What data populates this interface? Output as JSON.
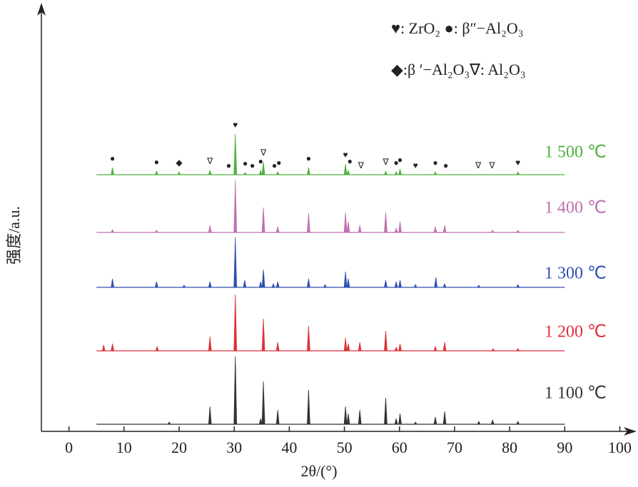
{
  "chart_data": {
    "type": "xrd",
    "xlabel": "2θ/(°)",
    "ylabel": "强度/a.u.",
    "xlim": [
      -5,
      102
    ],
    "xticks": [
      0,
      10,
      20,
      30,
      40,
      50,
      60,
      70,
      80,
      90,
      100
    ],
    "x_range": [
      5,
      90
    ],
    "legend": [
      "♥: ZrO₂ ●: β″−Al₂O₃",
      "◆:β ′−Al₂O₃∇:  Al₂O₃"
    ],
    "series": [
      {
        "name": "1 100 ℃",
        "color": "#333333",
        "x": [
          18.2,
          25.6,
          30.2,
          34.8,
          35.3,
          37.9,
          43.5,
          50.2,
          50.7,
          52.8,
          57.5,
          59.4,
          60.1,
          62.9,
          66.5,
          68.2,
          74.4,
          76.9,
          81.5
        ],
        "values": [
          3,
          25,
          95,
          8,
          60,
          20,
          48,
          25,
          15,
          20,
          37,
          8,
          15,
          3,
          10,
          18,
          4,
          6,
          4
        ]
      },
      {
        "name": "1 200 ℃",
        "color": "#e0303a",
        "x": [
          6.3,
          7.9,
          16,
          25.6,
          30.2,
          35.3,
          37.9,
          43.5,
          50.2,
          50.7,
          52.8,
          57.5,
          59.4,
          60.1,
          66.5,
          68.2,
          77,
          81.5
        ],
        "values": [
          8,
          10,
          6,
          20,
          79,
          45,
          12,
          35,
          18,
          10,
          12,
          28,
          5,
          10,
          6,
          12,
          3,
          3
        ]
      },
      {
        "name": "1 300 ℃",
        "color": "#3050b0",
        "x": [
          7.9,
          15.9,
          20.9,
          25.6,
          30.2,
          31.9,
          34.8,
          35.3,
          37.1,
          37.9,
          43.5,
          46.5,
          50.2,
          50.7,
          57.5,
          59.4,
          60.1,
          62.9,
          66.6,
          68.2,
          74.4,
          81.5
        ],
        "values": [
          12,
          8,
          3,
          8,
          70,
          10,
          8,
          25,
          5,
          8,
          12,
          4,
          22,
          12,
          10,
          8,
          10,
          4,
          14,
          5,
          3,
          4
        ]
      },
      {
        "name": "1 400 ℃",
        "color": "#c070b0",
        "x": [
          7.9,
          15.9,
          25.6,
          30.2,
          35.3,
          37.9,
          43.5,
          50.2,
          50.7,
          52.8,
          57.5,
          59.4,
          60.1,
          66.5,
          68.2,
          76.9,
          81.5
        ],
        "values": [
          4,
          3,
          10,
          73,
          35,
          8,
          27,
          28,
          15,
          10,
          28,
          6,
          15,
          8,
          10,
          3,
          3
        ]
      },
      {
        "name": "1 500 ℃",
        "color": "#50b040",
        "x": [
          7.9,
          15.9,
          20,
          25.6,
          30.2,
          32,
          34.8,
          35.3,
          37.9,
          43.5,
          50.2,
          50.7,
          57.5,
          59.4,
          60.1,
          66.5,
          81.5
        ],
        "values": [
          10,
          5,
          4,
          6,
          57,
          3,
          6,
          18,
          4,
          10,
          15,
          6,
          5,
          4,
          8,
          4,
          4
        ]
      }
    ],
    "phase_markers": {
      "x": [
        7.9,
        15.9,
        20,
        25.6,
        29,
        30.2,
        32,
        33.3,
        34.8,
        35.3,
        37.3,
        38.1,
        43.5,
        50.2,
        51,
        53,
        57.5,
        59.4,
        60.1,
        62.9,
        66.5,
        68.4,
        74.3,
        76.8,
        81.5
      ],
      "symbols": [
        "●",
        "●",
        "◆",
        "∇",
        "●",
        "♥",
        "●",
        "●",
        "●",
        "∇",
        "●",
        "●",
        "●",
        "♥",
        "●",
        "∇",
        "∇",
        "●",
        "●",
        "♥",
        "●",
        "●",
        "∇",
        "∇",
        "♥"
      ]
    }
  }
}
